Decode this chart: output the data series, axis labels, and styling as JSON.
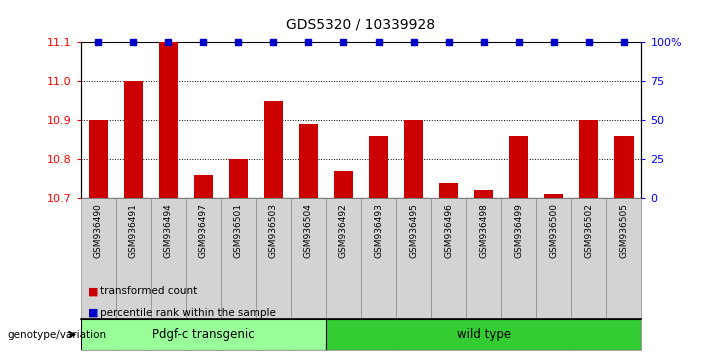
{
  "title": "GDS5320 / 10339928",
  "samples": [
    "GSM936490",
    "GSM936491",
    "GSM936494",
    "GSM936497",
    "GSM936501",
    "GSM936503",
    "GSM936504",
    "GSM936492",
    "GSM936493",
    "GSM936495",
    "GSM936496",
    "GSM936498",
    "GSM936499",
    "GSM936500",
    "GSM936502",
    "GSM936505"
  ],
  "transformed_counts": [
    10.9,
    11.0,
    11.1,
    10.76,
    10.8,
    10.95,
    10.89,
    10.77,
    10.86,
    10.9,
    10.74,
    10.72,
    10.86,
    10.71,
    10.9,
    10.86
  ],
  "percentile_ranks": [
    100,
    100,
    100,
    100,
    100,
    100,
    100,
    100,
    100,
    100,
    100,
    100,
    100,
    100,
    100,
    100
  ],
  "ylim_left": [
    10.7,
    11.1
  ],
  "ylim_right": [
    0,
    100
  ],
  "yticks_left": [
    10.7,
    10.8,
    10.9,
    11.0,
    11.1
  ],
  "yticks_right": [
    0,
    25,
    50,
    75,
    100
  ],
  "ytick_right_labels": [
    "0",
    "25",
    "50",
    "75",
    "100%"
  ],
  "bar_color": "#cc0000",
  "dot_color": "#0000cc",
  "bar_width": 0.55,
  "group1_label": "Pdgf-c transgenic",
  "group2_label": "wild type",
  "group1_count": 7,
  "group2_count": 9,
  "group1_color": "#99ff99",
  "group2_color": "#33cc33",
  "xlabel_left": "genotype/variation",
  "legend_bar": "transformed count",
  "legend_dot": "percentile rank within the sample",
  "cell_bg": "#d3d3d3",
  "cell_edge": "#888888",
  "plot_bg": "#ffffff"
}
